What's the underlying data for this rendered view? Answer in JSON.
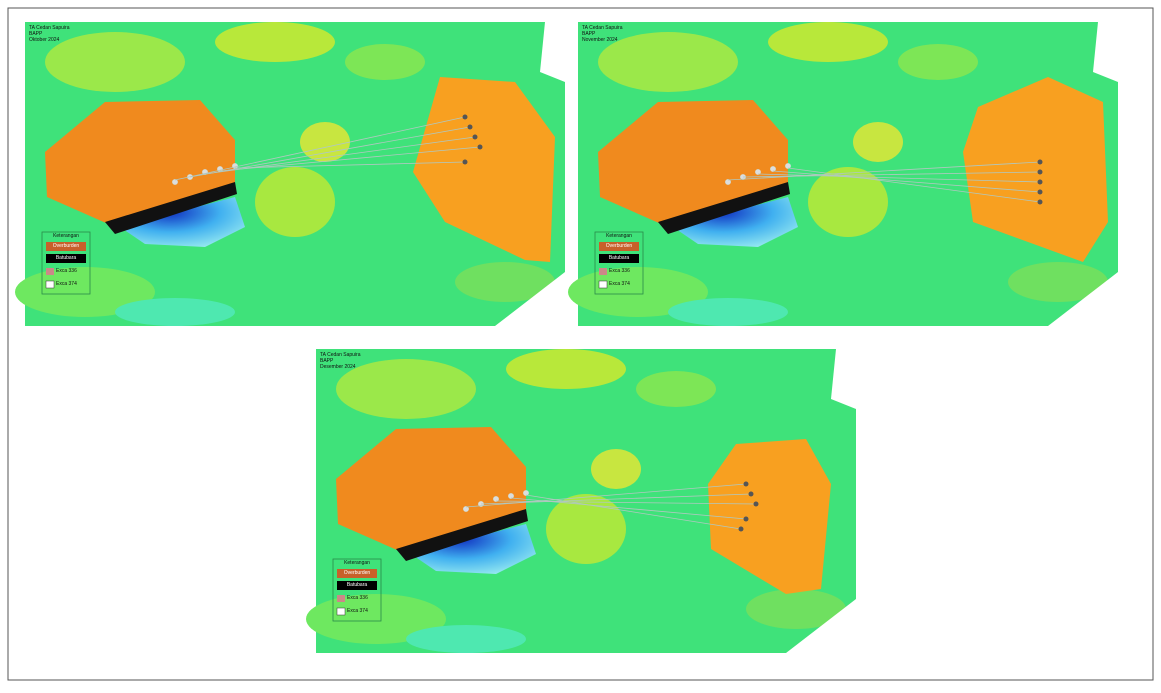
{
  "panels": [
    {
      "title_lines": [
        "TA Cedan Sapuira",
        "BAPP",
        "Oktober 2024"
      ],
      "legend": {
        "title": "Keterangan",
        "items": [
          "Overburden",
          "Batubara",
          "Exca 336",
          "Exca 374"
        ]
      }
    },
    {
      "title_lines": [
        "TA Cedan Sapuira",
        "BAPP",
        "November 2024"
      ],
      "legend": {
        "title": "Keterangan",
        "items": [
          "Overburden",
          "Batubara",
          "Exca 336",
          "Exca 374"
        ]
      }
    },
    {
      "title_lines": [
        "TA Cedan Sapuira",
        "BAPP",
        "Desember 2024"
      ],
      "legend": {
        "title": "Keterangan",
        "items": [
          "Overburden",
          "Batubara",
          "Exca 336",
          "Exca 374"
        ]
      }
    }
  ]
}
